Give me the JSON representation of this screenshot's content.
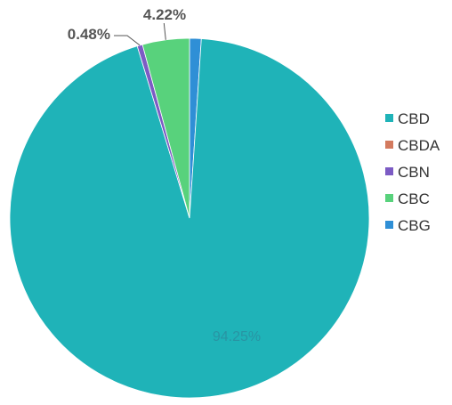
{
  "chart_data": {
    "type": "pie",
    "categories": [
      "CBD",
      "CBDA",
      "CBN",
      "CBC",
      "CBG"
    ],
    "values": [
      94.25,
      0.0,
      0.48,
      4.22,
      1.05
    ],
    "colors": [
      "#1fb3b8",
      "#d37a5e",
      "#7c5bc4",
      "#58d27c",
      "#2f8fd6"
    ],
    "data_labels": {
      "CBD": "94.25%",
      "CBN": "0.48%",
      "CBC": "4.22%"
    },
    "legend_placement": "right",
    "title": "",
    "xlabel": "",
    "ylabel": ""
  }
}
